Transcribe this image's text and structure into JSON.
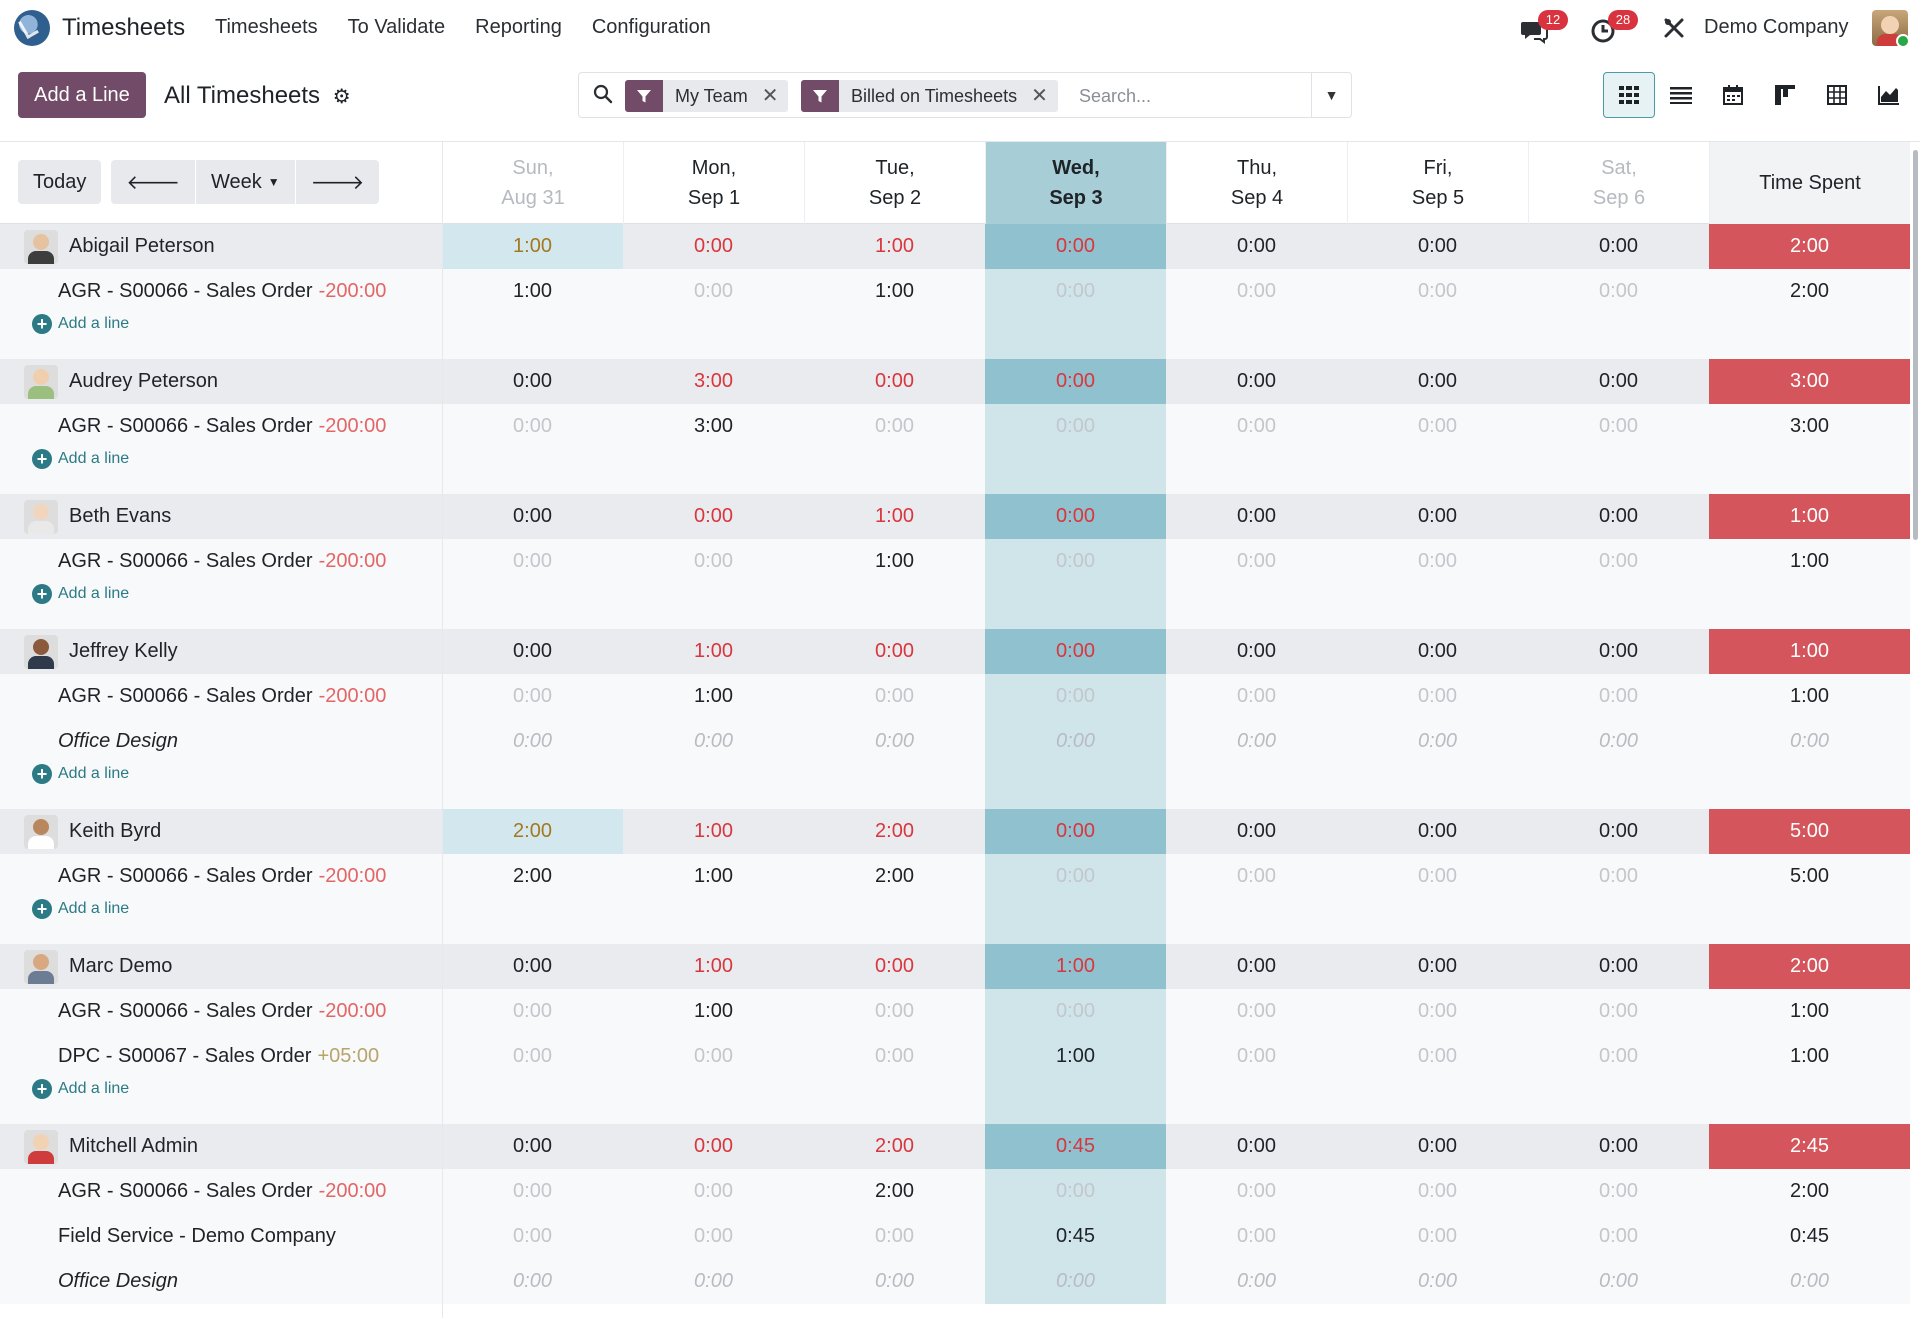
{
  "nav": {
    "app_name": "Timesheets",
    "menu": [
      "Timesheets",
      "To Validate",
      "Reporting",
      "Configuration"
    ],
    "messages_badge": "12",
    "activities_badge": "28",
    "company": "Demo Company"
  },
  "control": {
    "add_button": "Add a Line",
    "breadcrumb": "All Timesheets",
    "facets": [
      "My Team",
      "Billed on Timesheets"
    ],
    "search_placeholder": "Search...",
    "views": [
      "grid-icon",
      "list-icon",
      "calendar-icon",
      "kanban-icon",
      "pivot-icon",
      "graph-icon"
    ]
  },
  "grid_head": {
    "today": "Today",
    "range": "Week",
    "columns": [
      {
        "l1": "Sun,",
        "l2": "Aug 31",
        "kind": "weekend"
      },
      {
        "l1": "Mon,",
        "l2": "Sep 1",
        "kind": ""
      },
      {
        "l1": "Tue,",
        "l2": "Sep 2",
        "kind": ""
      },
      {
        "l1": "Wed,",
        "l2": "Sep 3",
        "kind": "today"
      },
      {
        "l1": "Thu,",
        "l2": "Sep 4",
        "kind": ""
      },
      {
        "l1": "Fri,",
        "l2": "Sep 5",
        "kind": ""
      },
      {
        "l1": "Sat,",
        "l2": "Sep 6",
        "kind": "weekend"
      }
    ],
    "total": "Time Spent"
  },
  "add_line_label": "Add a line",
  "colors": {
    "primary": "#714b67",
    "today": "#a7cdd6",
    "danger": "#d4555c",
    "link": "#2b7a86"
  },
  "employees": [
    {
      "name": "Abigail Peterson",
      "face": "#e5c2a0",
      "shirt": "#3d3d3d",
      "days": [
        "1:00",
        "0:00",
        "1:00",
        "0:00",
        "0:00",
        "0:00",
        "0:00"
      ],
      "total": "2:00",
      "tasks": [
        {
          "name": "AGR - S00066 - Sales Order",
          "delta": "-200:00",
          "days": [
            "1:00",
            "0:00",
            "1:00",
            "0:00",
            "0:00",
            "0:00",
            "0:00"
          ],
          "total": "2:00"
        }
      ]
    },
    {
      "name": "Audrey Peterson",
      "face": "#f0cfae",
      "shirt": "#9bbf7e",
      "days": [
        "0:00",
        "3:00",
        "0:00",
        "0:00",
        "0:00",
        "0:00",
        "0:00"
      ],
      "total": "3:00",
      "tasks": [
        {
          "name": "AGR - S00066 - Sales Order",
          "delta": "-200:00",
          "days": [
            "0:00",
            "3:00",
            "0:00",
            "0:00",
            "0:00",
            "0:00",
            "0:00"
          ],
          "total": "3:00"
        }
      ]
    },
    {
      "name": "Beth Evans",
      "face": "#f1d6bd",
      "shirt": "#e9e9e9",
      "days": [
        "0:00",
        "0:00",
        "1:00",
        "0:00",
        "0:00",
        "0:00",
        "0:00"
      ],
      "total": "1:00",
      "tasks": [
        {
          "name": "AGR - S00066 - Sales Order",
          "delta": "-200:00",
          "days": [
            "0:00",
            "0:00",
            "1:00",
            "0:00",
            "0:00",
            "0:00",
            "0:00"
          ],
          "total": "1:00"
        }
      ]
    },
    {
      "name": "Jeffrey Kelly",
      "face": "#8a5a3b",
      "shirt": "#2f3a4a",
      "days": [
        "0:00",
        "1:00",
        "0:00",
        "0:00",
        "0:00",
        "0:00",
        "0:00"
      ],
      "total": "1:00",
      "tasks": [
        {
          "name": "AGR - S00066 - Sales Order",
          "delta": "-200:00",
          "days": [
            "0:00",
            "1:00",
            "0:00",
            "0:00",
            "0:00",
            "0:00",
            "0:00"
          ],
          "total": "1:00"
        },
        {
          "name": "Office Design",
          "delta": "",
          "italic": true,
          "days": [
            "0:00",
            "0:00",
            "0:00",
            "0:00",
            "0:00",
            "0:00",
            "0:00"
          ],
          "total": "0:00"
        }
      ]
    },
    {
      "name": "Keith Byrd",
      "face": "#b9875e",
      "shirt": "#ffffff",
      "days": [
        "2:00",
        "1:00",
        "2:00",
        "0:00",
        "0:00",
        "0:00",
        "0:00"
      ],
      "total": "5:00",
      "tasks": [
        {
          "name": "AGR - S00066 - Sales Order",
          "delta": "-200:00",
          "days": [
            "2:00",
            "1:00",
            "2:00",
            "0:00",
            "0:00",
            "0:00",
            "0:00"
          ],
          "total": "5:00"
        }
      ]
    },
    {
      "name": "Marc Demo",
      "face": "#d8a980",
      "shirt": "#6b7c93",
      "days": [
        "0:00",
        "1:00",
        "0:00",
        "1:00",
        "0:00",
        "0:00",
        "0:00"
      ],
      "total": "2:00",
      "tasks": [
        {
          "name": "AGR - S00066 - Sales Order",
          "delta": "-200:00",
          "days": [
            "0:00",
            "1:00",
            "0:00",
            "0:00",
            "0:00",
            "0:00",
            "0:00"
          ],
          "total": "1:00"
        },
        {
          "name": "DPC - S00067 - Sales Order",
          "delta": "+05:00",
          "days": [
            "0:00",
            "0:00",
            "0:00",
            "1:00",
            "0:00",
            "0:00",
            "0:00"
          ],
          "total": "1:00"
        }
      ]
    },
    {
      "name": "Mitchell Admin",
      "face": "#f1d3b3",
      "shirt": "#cf3c3c",
      "days": [
        "0:00",
        "0:00",
        "2:00",
        "0:45",
        "0:00",
        "0:00",
        "0:00"
      ],
      "total": "2:45",
      "tasks": [
        {
          "name": "AGR - S00066 - Sales Order",
          "delta": "-200:00",
          "days": [
            "0:00",
            "0:00",
            "2:00",
            "0:00",
            "0:00",
            "0:00",
            "0:00"
          ],
          "total": "2:00"
        },
        {
          "name": "Field Service - Demo Company",
          "delta": "",
          "days": [
            "0:00",
            "0:00",
            "0:00",
            "0:45",
            "0:00",
            "0:00",
            "0:00"
          ],
          "total": "0:45"
        },
        {
          "name": "Office Design",
          "delta": "",
          "italic": true,
          "days": [
            "0:00",
            "0:00",
            "0:00",
            "0:00",
            "0:00",
            "0:00",
            "0:00"
          ],
          "total": "0:00"
        }
      ]
    }
  ]
}
